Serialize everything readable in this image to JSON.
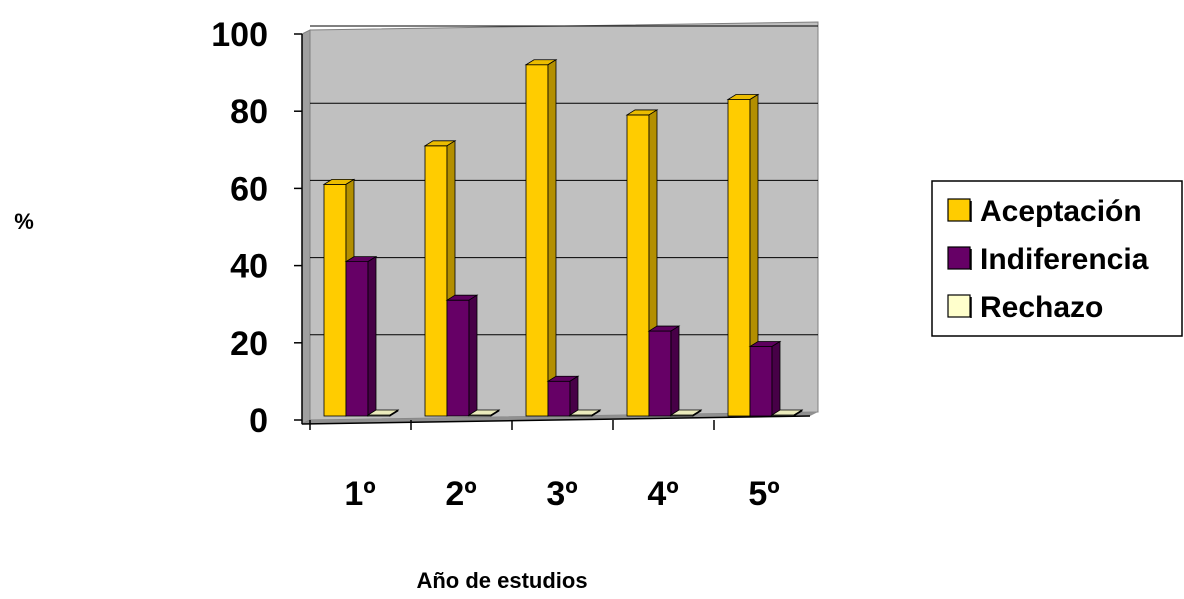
{
  "chart_data": {
    "type": "bar",
    "title": "",
    "xlabel": "Año de estudios",
    "ylabel": "%",
    "ylim": [
      0,
      100
    ],
    "yticks": [
      "0",
      "20",
      "40",
      "60",
      "80",
      "100"
    ],
    "categories": [
      "1º",
      "2º",
      "3º",
      "4º",
      "5º"
    ],
    "series": [
      {
        "name": "Aceptación",
        "values": [
          60,
          70,
          91,
          78,
          82
        ],
        "color": "#FFCC00"
      },
      {
        "name": "Indiferencia",
        "values": [
          40,
          30,
          9,
          22,
          18
        ],
        "color": "#660066"
      },
      {
        "name": "Rechazo",
        "values": [
          0,
          0,
          0,
          0,
          0
        ],
        "color": "#FFFFCC"
      }
    ],
    "grid": true,
    "legend_position": "right",
    "style": "3d-clustered-column",
    "plot_background": "#C0C0C0"
  }
}
